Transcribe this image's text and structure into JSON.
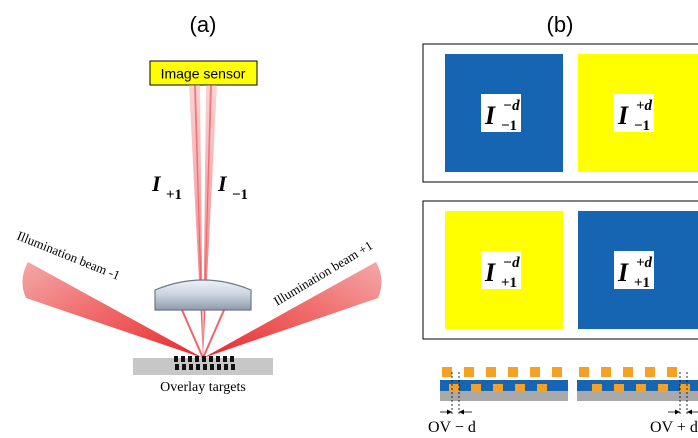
{
  "panel_a": {
    "label": "(a)",
    "sensor_label": "Image sensor",
    "beam_left_label": "Illumination beam -1",
    "beam_right_label": "Illumination beam +1",
    "intensity_plus_base": "I",
    "intensity_plus_sub": "+1",
    "intensity_minus_base": "I",
    "intensity_minus_sub": "−1",
    "target_label": "Overlay targets"
  },
  "panel_b": {
    "label": "(b)",
    "row1": [
      {
        "base": "I",
        "sup": "−d",
        "sub": "−1",
        "color": "#1565b3"
      },
      {
        "base": "I",
        "sup": "+d",
        "sub": "−1",
        "color": "#ffff00"
      }
    ],
    "row2": [
      {
        "base": "I",
        "sup": "−d",
        "sub": "+1",
        "color": "#ffff00"
      },
      {
        "base": "I",
        "sup": "+d",
        "sub": "+1",
        "color": "#1565b3"
      }
    ],
    "ov_minus_label": "OV − d",
    "ov_plus_label": "OV + d"
  },
  "colors": {
    "blue": "#1565b3",
    "yellow": "#ffff00",
    "orange": "#f6a024",
    "gray": "#a9a9a9",
    "sensor_fill": "#ffff00",
    "beam_red": "#e8262a"
  }
}
